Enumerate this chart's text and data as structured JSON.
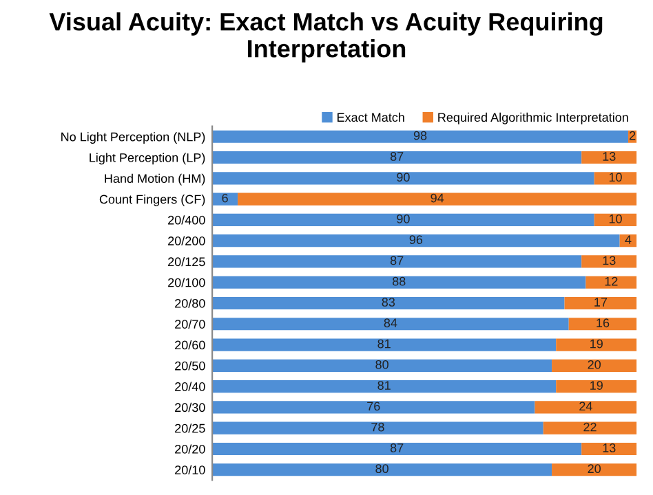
{
  "chart_data": {
    "type": "bar",
    "title": "Visual Acuity: Exact Match vs Acuity Requiring Interpretation",
    "orientation": "horizontal",
    "stacked": true,
    "data_labels": true,
    "legend": "top right",
    "tick_labels": "y",
    "xlim": [
      0,
      100
    ],
    "categories": [
      "No Light Perception (NLP)",
      "Light Perception (LP)",
      "Hand Motion (HM)",
      "Count Fingers (CF)",
      "20/400",
      "20/200",
      "20/125",
      "20/100",
      "20/80",
      "20/70",
      "20/60",
      "20/50",
      "20/40",
      "20/30",
      "20/25",
      "20/20",
      "20/10"
    ],
    "series": [
      {
        "name": "Exact Match",
        "color": "#4f8fd6",
        "values": [
          98,
          87,
          90,
          6,
          90,
          96,
          87,
          88,
          83,
          84,
          81,
          80,
          81,
          76,
          78,
          87,
          80
        ]
      },
      {
        "name": "Required Algorithmic Interpretation",
        "color": "#f07f2a",
        "values": [
          2,
          13,
          10,
          94,
          10,
          4,
          13,
          12,
          17,
          16,
          19,
          20,
          19,
          24,
          22,
          13,
          20
        ]
      }
    ]
  }
}
